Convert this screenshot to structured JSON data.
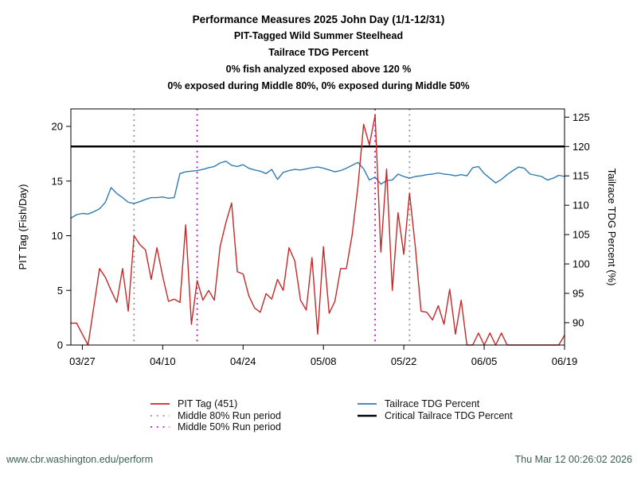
{
  "titles": {
    "line1": "Performance Measures 2025 John Day (1/1-12/31)",
    "line2": "PIT-Tagged Wild Summer Steelhead",
    "line3": "Tailrace TDG Percent",
    "line4": "0% fish analyzed exposed above 120 %",
    "line5": "0% exposed during Middle 80%, 0% exposed during Middle 50%"
  },
  "footer": {
    "left": "www.cbr.washington.edu/perform",
    "right": "Thu Mar 12 00:26:02 2026",
    "color": "#3a5f53"
  },
  "legend": {
    "items": [
      {
        "label": "PIT Tag (451)",
        "style": "solid",
        "color": "#c62828",
        "column": 1
      },
      {
        "label": "Middle 80% Run period",
        "style": "dotted",
        "color": "#8c8c8c",
        "column": 1
      },
      {
        "label": "Middle 50% Run period",
        "style": "dotted",
        "color": "#bf00bf",
        "column": 1
      },
      {
        "label": "Tailrace TDG Percent",
        "style": "solid",
        "color": "#2e7cb5",
        "column": 2
      },
      {
        "label": "Critical Tailrace TDG Percent",
        "style": "solid",
        "color": "#000000",
        "column": 2
      }
    ]
  },
  "chart_data": {
    "type": "line",
    "title": "Performance Measures 2025 John Day (1/1-12/31)",
    "xlabel": "",
    "x_tick_labels": [
      "03/27",
      "04/10",
      "04/24",
      "05/08",
      "05/22",
      "06/05",
      "06/19"
    ],
    "y_left": {
      "label": "PIT Tag (Fish/Day)",
      "ticks": [
        0,
        5,
        10,
        15,
        20
      ],
      "range": [
        0,
        21.6
      ]
    },
    "y_right": {
      "label": "Tailrace TDG Percent (%)",
      "ticks": [
        90,
        95,
        100,
        105,
        110,
        115,
        120,
        125
      ],
      "range": [
        86.2,
        126.4
      ]
    },
    "grid": false,
    "legend_position": "bottom",
    "dates": [
      "03/25",
      "03/26",
      "03/27",
      "03/28",
      "03/29",
      "03/30",
      "03/31",
      "04/01",
      "04/02",
      "04/03",
      "04/04",
      "04/05",
      "04/06",
      "04/07",
      "04/08",
      "04/09",
      "04/10",
      "04/11",
      "04/12",
      "04/13",
      "04/14",
      "04/15",
      "04/16",
      "04/17",
      "04/18",
      "04/19",
      "04/20",
      "04/21",
      "04/22",
      "04/23",
      "04/24",
      "04/25",
      "04/26",
      "04/27",
      "04/28",
      "04/29",
      "04/30",
      "05/01",
      "05/02",
      "05/03",
      "05/04",
      "05/05",
      "05/06",
      "05/07",
      "05/08",
      "05/09",
      "05/10",
      "05/11",
      "05/12",
      "05/13",
      "05/14",
      "05/15",
      "05/16",
      "05/17",
      "05/18",
      "05/19",
      "05/20",
      "05/21",
      "05/22",
      "05/23",
      "05/24",
      "05/25",
      "05/26",
      "05/27",
      "05/28",
      "05/29",
      "05/30",
      "05/31",
      "06/01",
      "06/02",
      "06/03",
      "06/04",
      "06/05",
      "06/06",
      "06/07",
      "06/08",
      "06/09",
      "06/10",
      "06/11",
      "06/12",
      "06/13",
      "06/14",
      "06/15",
      "06/16",
      "06/17",
      "06/18",
      "06/19"
    ],
    "series": [
      {
        "name": "PIT Tag (451)",
        "axis": "left",
        "color": "#c62828",
        "values": [
          2,
          2,
          1,
          0,
          3.5,
          7,
          6.2,
          5,
          3.9,
          7,
          3.1,
          10,
          9.2,
          8.7,
          6,
          8.9,
          6.3,
          4,
          4.2,
          3.9,
          11,
          1.9,
          5.9,
          4.1,
          5,
          4.1,
          9,
          11.2,
          13,
          6.7,
          6.5,
          4.5,
          3.4,
          3,
          4.7,
          4.2,
          6,
          5,
          8.9,
          7.7,
          4.1,
          3.2,
          8,
          1,
          9,
          2.9,
          4,
          7,
          7,
          10.1,
          14.5,
          20.2,
          18.3,
          21,
          8.5,
          16.1,
          5,
          12.1,
          8.3,
          13.9,
          9,
          3.1,
          3,
          2.3,
          3.6,
          1.9,
          5.1,
          1,
          4.1,
          0,
          0,
          1.1,
          0,
          1.1,
          0,
          1.1,
          0,
          0,
          0,
          0,
          0,
          0,
          0,
          0,
          0,
          0,
          0.9
        ]
      },
      {
        "name": "Tailrace TDG Percent",
        "axis": "right",
        "color": "#2e7cb5",
        "values": [
          107.8,
          108.4,
          108.6,
          108.5,
          108.9,
          109.4,
          110.5,
          113,
          112,
          111.3,
          110.5,
          110.3,
          110.6,
          111,
          111.3,
          111.3,
          111.4,
          111.2,
          111.3,
          115.4,
          115.7,
          115.8,
          115.9,
          116.1,
          116.4,
          116.6,
          117.2,
          117.5,
          116.8,
          116.6,
          116.9,
          116.3,
          116,
          115.8,
          115.4,
          116.1,
          114.4,
          115.6,
          115.9,
          116.1,
          116,
          116.2,
          116.4,
          116.5,
          116.3,
          116,
          115.7,
          115.9,
          116.3,
          116.8,
          117.3,
          116.2,
          114.3,
          114.8,
          113.6,
          114.2,
          114.3,
          115.3,
          114.9,
          114.6,
          114.9,
          115,
          115.2,
          115.3,
          115.5,
          115.3,
          115.2,
          115,
          115.2,
          115,
          116.4,
          116.6,
          115.4,
          114.6,
          113.8,
          114.4,
          115.2,
          115.9,
          116.5,
          116.3,
          115.3,
          115.1,
          114.9,
          114.3,
          114.6,
          115.1,
          114.9
        ]
      }
    ],
    "critical_line": {
      "name": "Critical Tailrace TDG Percent",
      "axis": "right",
      "value": 120,
      "color": "#000000"
    },
    "vlines": [
      {
        "name": "Middle 80% Run period",
        "dates": [
          "04/05",
          "05/23"
        ],
        "color": "#8c8c8c"
      },
      {
        "name": "Middle 50% Run period",
        "dates": [
          "04/16",
          "05/17"
        ],
        "color": "#bf00bf"
      }
    ]
  }
}
